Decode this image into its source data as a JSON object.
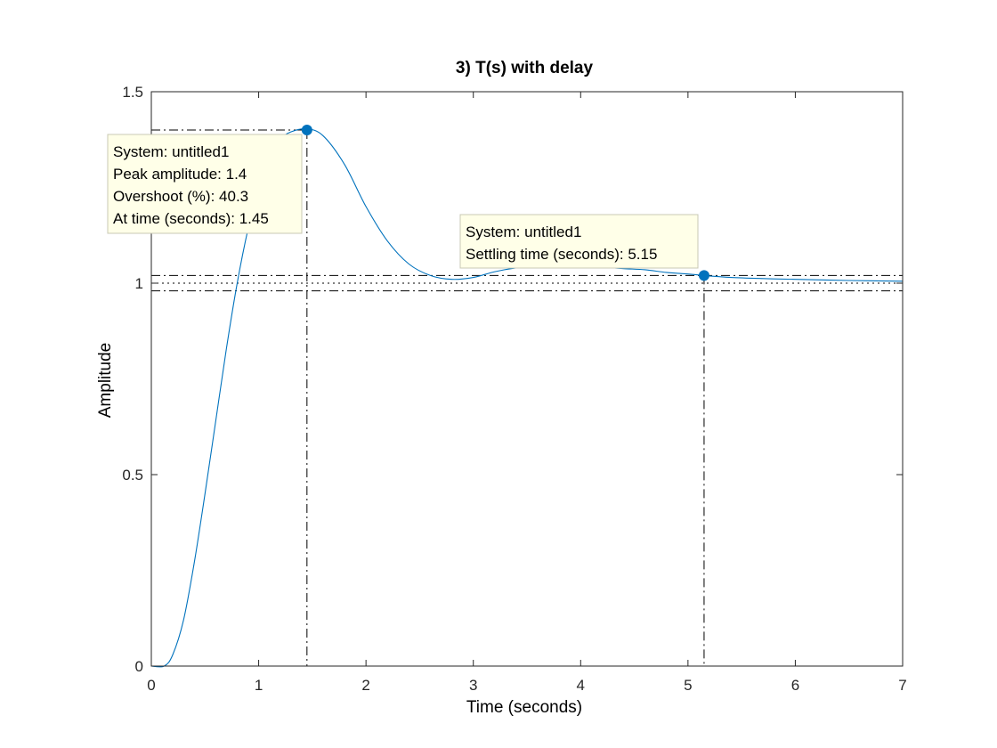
{
  "chart_data": {
    "type": "line",
    "title": "3) T(s) with delay",
    "xlabel": "Time (seconds)",
    "ylabel": "Amplitude",
    "xlim": [
      0,
      7
    ],
    "ylim": [
      0,
      1.5
    ],
    "x_ticks": [
      "0",
      "1",
      "2",
      "3",
      "4",
      "5",
      "6",
      "7"
    ],
    "y_ticks": [
      "0",
      "0.5",
      "1",
      "1.5"
    ],
    "grid": false,
    "colors": {
      "line": "#0072BD",
      "marker": "#0072BD",
      "tip_bg": "#FFFFE8",
      "tip_border": "#C8C8B4"
    },
    "series": [
      {
        "x": [
          0,
          0.12,
          0.2,
          0.3,
          0.4,
          0.5,
          0.6,
          0.7,
          0.8,
          0.9,
          1.0,
          1.1,
          1.2,
          1.3,
          1.45,
          1.6,
          1.8,
          2.0,
          2.2,
          2.4,
          2.6,
          2.8,
          3.0,
          3.2,
          3.4,
          3.6,
          3.8,
          4.0,
          4.2,
          4.4,
          4.6,
          4.8,
          5.0,
          5.15,
          5.4,
          5.7,
          6.0,
          6.5,
          7.0
        ],
        "y": [
          0,
          0,
          0.03,
          0.12,
          0.27,
          0.45,
          0.64,
          0.83,
          1.0,
          1.14,
          1.25,
          1.33,
          1.375,
          1.395,
          1.403,
          1.385,
          1.31,
          1.2,
          1.11,
          1.05,
          1.02,
          1.01,
          1.015,
          1.03,
          1.04,
          1.045,
          1.045,
          1.045,
          1.042,
          1.038,
          1.035,
          1.028,
          1.024,
          1.02,
          1.015,
          1.012,
          1.01,
          1.007,
          1.005
        ]
      }
    ],
    "reference_lines": {
      "final_value": 1.0,
      "settling_band": [
        0.98,
        1.02
      ]
    },
    "datatips": [
      {
        "x": 1.45,
        "y": 1.4,
        "lines": [
          "System: untitled1",
          "Peak amplitude: 1.4",
          "Overshoot (%): 40.3",
          "At time (seconds): 1.45"
        ]
      },
      {
        "x": 5.15,
        "y": 1.02,
        "lines": [
          "System: untitled1",
          "Settling time (seconds): 5.15"
        ]
      }
    ]
  }
}
